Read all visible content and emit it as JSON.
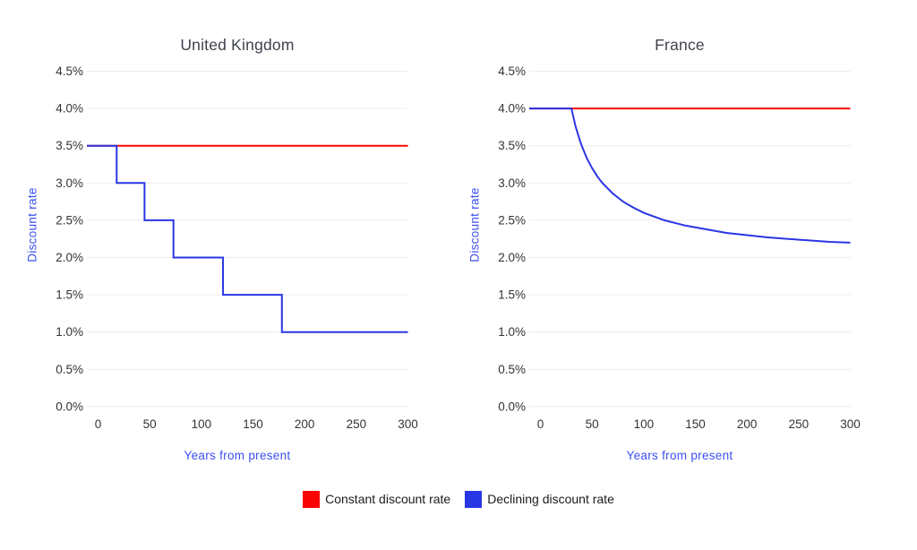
{
  "colors": {
    "constant_line": "#fa0505",
    "declining_line": "#2936e4",
    "axis_label_text": "#3d4ff0",
    "tick_text": "#333333",
    "title_text": "#40434e",
    "grid_line": "#ececec",
    "legend_text": "#1b1b1b",
    "background": "#ffffff"
  },
  "legend": {
    "items": [
      {
        "label": "Constant discount rate",
        "color_key": "constant_line"
      },
      {
        "label": "Declining discount rate",
        "color_key": "declining_line"
      }
    ]
  },
  "chart_data": [
    {
      "type": "line",
      "title": "United Kingdom",
      "xlabel": "Years from present",
      "ylabel": "Discount rate",
      "xlim": [
        0,
        300
      ],
      "ylim": [
        0,
        4.5
      ],
      "x_ticks": [
        0,
        50,
        100,
        150,
        200,
        250,
        300
      ],
      "y_ticks": [
        4.5,
        4.0,
        3.5,
        3.0,
        2.5,
        2.0,
        1.5,
        1.0,
        0.5,
        0.0
      ],
      "y_tick_suffix": "%",
      "grid": true,
      "legend_position": "bottom-shared",
      "series": [
        {
          "name": "Constant discount rate",
          "color_key": "constant_line",
          "shape": "flat",
          "points": [
            [
              0,
              3.5
            ],
            [
              300,
              3.5
            ]
          ]
        },
        {
          "name": "Declining discount rate",
          "color_key": "declining_line",
          "shape": "step",
          "points": [
            [
              0,
              3.5
            ],
            [
              18,
              3.5
            ],
            [
              18,
              3.0
            ],
            [
              45,
              3.0
            ],
            [
              45,
              2.5
            ],
            [
              73,
              2.5
            ],
            [
              73,
              2.0
            ],
            [
              121,
              2.0
            ],
            [
              121,
              1.5
            ],
            [
              178,
              1.5
            ],
            [
              178,
              1.0
            ],
            [
              300,
              1.0
            ]
          ]
        }
      ]
    },
    {
      "type": "line",
      "title": "France",
      "xlabel": "Years from present",
      "ylabel": "Discount rate",
      "xlim": [
        0,
        300
      ],
      "ylim": [
        0,
        4.5
      ],
      "x_ticks": [
        0,
        50,
        100,
        150,
        200,
        250,
        300
      ],
      "y_ticks": [
        4.5,
        4.0,
        3.5,
        3.0,
        2.5,
        2.0,
        1.5,
        1.0,
        0.5,
        0.0
      ],
      "y_tick_suffix": "%",
      "grid": true,
      "legend_position": "bottom-shared",
      "series": [
        {
          "name": "Constant discount rate",
          "color_key": "constant_line",
          "shape": "flat",
          "points": [
            [
              0,
              4.0
            ],
            [
              300,
              4.0
            ]
          ]
        },
        {
          "name": "Declining discount rate",
          "color_key": "declining_line",
          "shape": "curve",
          "points": [
            [
              0,
              4.0
            ],
            [
              30,
              4.0
            ],
            [
              32,
              3.88
            ],
            [
              34,
              3.76
            ],
            [
              36,
              3.67
            ],
            [
              38,
              3.58
            ],
            [
              40,
              3.5
            ],
            [
              45,
              3.33
            ],
            [
              50,
              3.2
            ],
            [
              55,
              3.09
            ],
            [
              60,
              3.0
            ],
            [
              70,
              2.86
            ],
            [
              80,
              2.75
            ],
            [
              90,
              2.67
            ],
            [
              100,
              2.6
            ],
            [
              120,
              2.5
            ],
            [
              140,
              2.43
            ],
            [
              160,
              2.38
            ],
            [
              180,
              2.33
            ],
            [
              200,
              2.3
            ],
            [
              220,
              2.27
            ],
            [
              240,
              2.25
            ],
            [
              260,
              2.23
            ],
            [
              280,
              2.21
            ],
            [
              300,
              2.2
            ]
          ]
        }
      ]
    }
  ]
}
